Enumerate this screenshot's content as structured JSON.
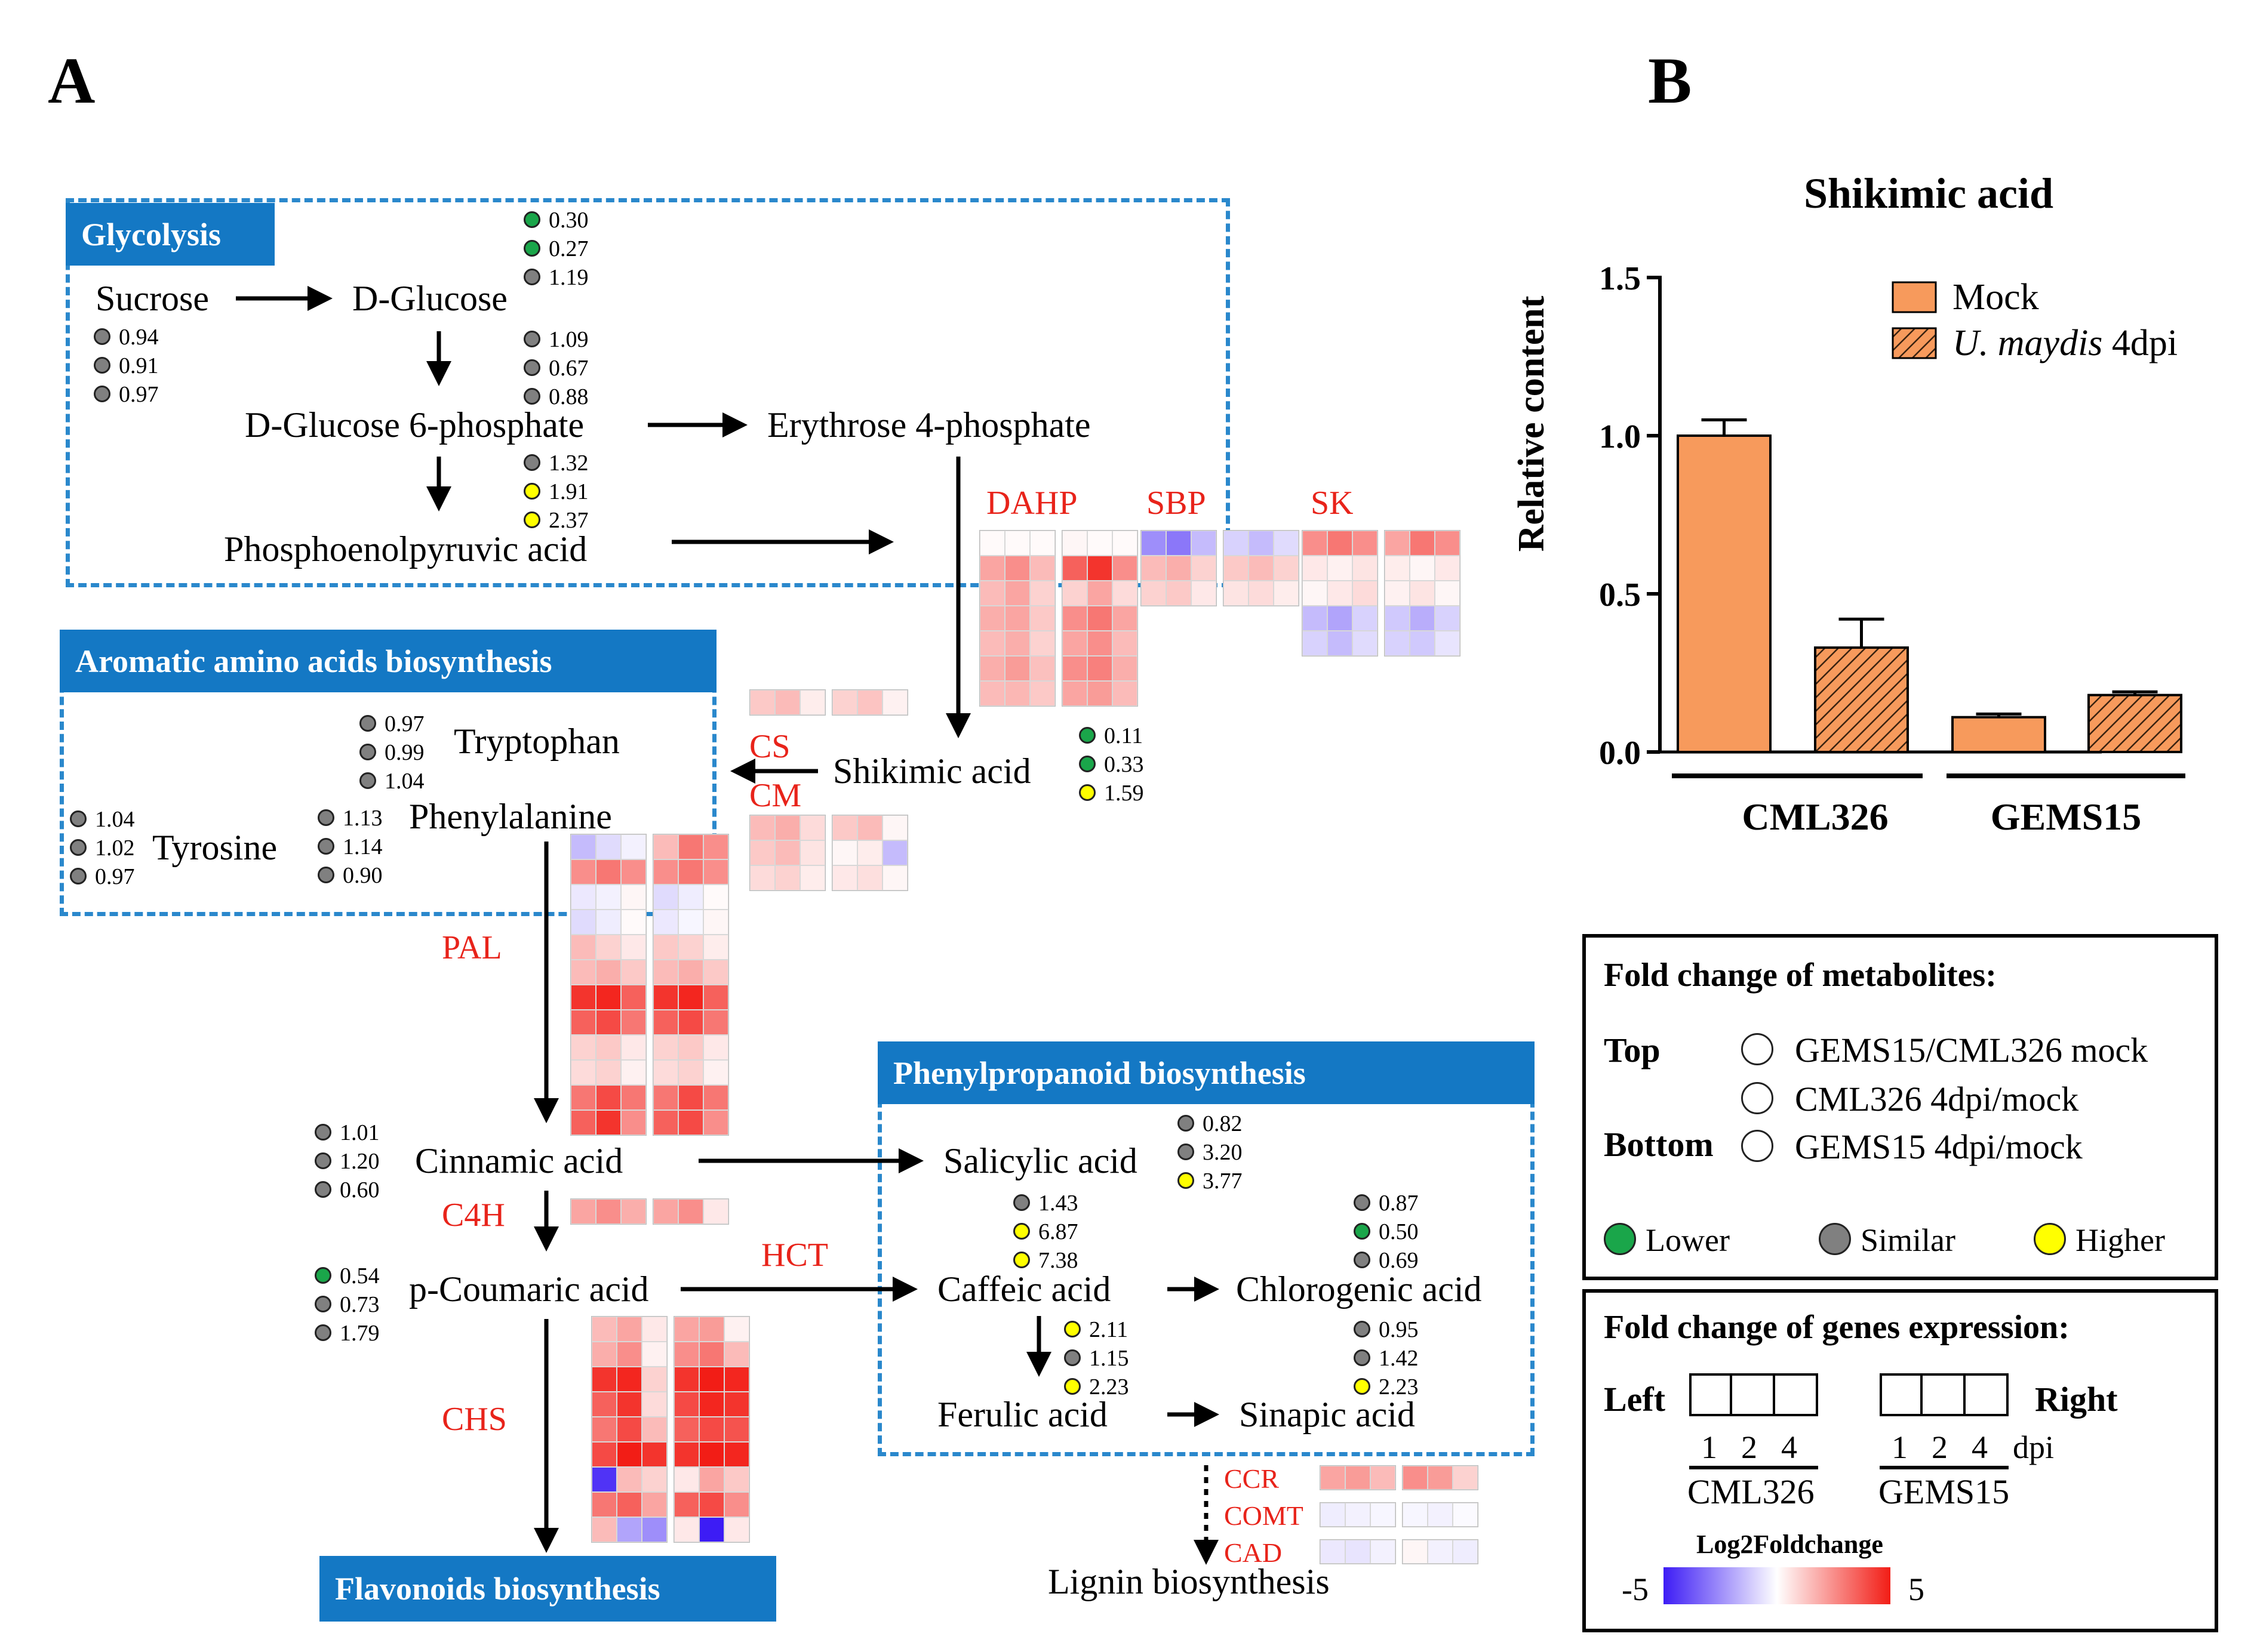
{
  "panels": {
    "a": "A",
    "b": "B"
  },
  "pathway": {
    "sections": {
      "glycolysis": "Glycolysis",
      "aromatic": "Aromatic amino acids biosynthesis",
      "phenylpropanoid": "Phenylpropanoid biosynthesis",
      "flavonoids": "Flavonoids biosynthesis"
    },
    "metabolites": {
      "sucrose": "Sucrose",
      "d_glucose": "D-Glucose",
      "g6p": "D-Glucose 6-phosphate",
      "e4p": "Erythrose 4-phosphate",
      "pep": "Phosphoenolpyruvic acid",
      "shikimic": "Shikimic acid",
      "tryptophan": "Tryptophan",
      "phenylalanine": "Phenylalanine",
      "tyrosine": "Tyrosine",
      "cinnamic": "Cinnamic acid",
      "p_coumaric": "p-Coumaric acid",
      "salicylic": "Salicylic acid",
      "caffeic": "Caffeic acid",
      "chlorogenic": "Chlorogenic acid",
      "ferulic": "Ferulic acid",
      "sinapic": "Sinapic acid",
      "lignin": "Lignin biosynthesis"
    },
    "enzymes": {
      "dahp": "DAHP",
      "sbp": "SBP",
      "sk": "SK",
      "cs": "CS",
      "cm": "CM",
      "pal": "PAL",
      "c4h": "C4H",
      "hct": "HCT",
      "chs": "CHS",
      "ccr": "CCR",
      "comt": "COMT",
      "cad": "CAD"
    },
    "fold_changes": {
      "d_glucose": [
        {
          "v": "0.30",
          "c": "lower"
        },
        {
          "v": "0.27",
          "c": "lower"
        },
        {
          "v": "1.19",
          "c": "similar"
        }
      ],
      "sucrose": [
        {
          "v": "0.94",
          "c": "similar"
        },
        {
          "v": "0.91",
          "c": "similar"
        },
        {
          "v": "0.97",
          "c": "similar"
        }
      ],
      "g6p": [
        {
          "v": "1.09",
          "c": "similar"
        },
        {
          "v": "0.67",
          "c": "similar"
        },
        {
          "v": "0.88",
          "c": "similar"
        }
      ],
      "pep": [
        {
          "v": "1.32",
          "c": "similar"
        },
        {
          "v": "1.91",
          "c": "higher"
        },
        {
          "v": "2.37",
          "c": "higher"
        }
      ],
      "shikimic": [
        {
          "v": "0.11",
          "c": "lower"
        },
        {
          "v": "0.33",
          "c": "lower"
        },
        {
          "v": "1.59",
          "c": "higher"
        }
      ],
      "tryptophan": [
        {
          "v": "0.97",
          "c": "similar"
        },
        {
          "v": "0.99",
          "c": "similar"
        },
        {
          "v": "1.04",
          "c": "similar"
        }
      ],
      "tyrosine": [
        {
          "v": "1.04",
          "c": "similar"
        },
        {
          "v": "1.02",
          "c": "similar"
        },
        {
          "v": "0.97",
          "c": "similar"
        }
      ],
      "phenylalanine": [
        {
          "v": "1.13",
          "c": "similar"
        },
        {
          "v": "1.14",
          "c": "similar"
        },
        {
          "v": "0.90",
          "c": "similar"
        }
      ],
      "cinnamic": [
        {
          "v": "1.01",
          "c": "similar"
        },
        {
          "v": "1.20",
          "c": "similar"
        },
        {
          "v": "0.60",
          "c": "similar"
        }
      ],
      "salicylic": [
        {
          "v": "0.82",
          "c": "similar"
        },
        {
          "v": "3.20",
          "c": "similar"
        },
        {
          "v": "3.77",
          "c": "higher"
        }
      ],
      "caffeic": [
        {
          "v": "1.43",
          "c": "similar"
        },
        {
          "v": "6.87",
          "c": "higher"
        },
        {
          "v": "7.38",
          "c": "higher"
        }
      ],
      "chlorogenic": [
        {
          "v": "0.87",
          "c": "similar"
        },
        {
          "v": "0.50",
          "c": "lower"
        },
        {
          "v": "0.69",
          "c": "similar"
        }
      ],
      "p_coumaric": [
        {
          "v": "0.54",
          "c": "lower"
        },
        {
          "v": "0.73",
          "c": "similar"
        },
        {
          "v": "1.79",
          "c": "similar"
        }
      ],
      "ferulic": [
        {
          "v": "2.11",
          "c": "higher"
        },
        {
          "v": "1.15",
          "c": "similar"
        },
        {
          "v": "2.23",
          "c": "higher"
        }
      ],
      "sinapic": [
        {
          "v": "0.95",
          "c": "similar"
        },
        {
          "v": "1.42",
          "c": "similar"
        },
        {
          "v": "2.23",
          "c": "higher"
        }
      ]
    },
    "heatmaps": {
      "dahp": [
        [
          0.1,
          0.1,
          0.1,
          0.2,
          0.1,
          0.1
        ],
        [
          2,
          2.5,
          1.5,
          3.5,
          4.5,
          2.5
        ],
        [
          1.5,
          2,
          1,
          1,
          2,
          0.8
        ],
        [
          1.8,
          2,
          1.2,
          2.5,
          3,
          2
        ],
        [
          1.5,
          1.8,
          1,
          2,
          2.5,
          1.5
        ],
        [
          1.8,
          2.2,
          1.4,
          2.5,
          2.8,
          1.8
        ],
        [
          1.5,
          1.6,
          1.2,
          2,
          2.2,
          1.5
        ]
      ],
      "sbp": [
        [
          -2.5,
          -3,
          -1.5,
          -1,
          -1.5,
          -0.8
        ],
        [
          1.5,
          1.8,
          1,
          1.2,
          1.5,
          1
        ],
        [
          1,
          1.2,
          0.5,
          0.6,
          0.8,
          0.4
        ]
      ],
      "sk": [
        [
          2.5,
          3,
          2.5,
          2,
          3,
          2.5
        ],
        [
          0.5,
          0.3,
          0.6,
          0.4,
          0.2,
          0.5
        ],
        [
          0.2,
          0.5,
          0.8,
          0.3,
          0.6,
          0.2
        ],
        [
          -1.5,
          -2,
          -1,
          -1.2,
          -1.8,
          -1
        ],
        [
          -1,
          -1.5,
          -0.8,
          -1,
          -1.2,
          -0.6
        ]
      ],
      "cs": [
        [
          1.2,
          1.5,
          0.4,
          1,
          1.3,
          0.3
        ]
      ],
      "cm": [
        [
          1.5,
          1.8,
          0.8,
          1.2,
          1.5,
          0.2
        ],
        [
          1.2,
          1.5,
          0.6,
          0.2,
          0.4,
          -1.5
        ],
        [
          0.8,
          1,
          0.4,
          0.5,
          0.7,
          0.2
        ]
      ],
      "pal": [
        [
          -1.5,
          -0.8,
          -0.3,
          1.5,
          3,
          2.5
        ],
        [
          2.5,
          3,
          2.5,
          2.5,
          3,
          2.5
        ],
        [
          -0.5,
          -0.3,
          0.2,
          -0.8,
          -0.4,
          0.1
        ],
        [
          -0.8,
          -0.4,
          0.1,
          -0.5,
          -0.2,
          0.2
        ],
        [
          1.5,
          1,
          0.5,
          1.2,
          1,
          0.4
        ],
        [
          1.5,
          1.8,
          1.2,
          1.5,
          1.8,
          1.2
        ],
        [
          4.5,
          4.8,
          3.5,
          4.5,
          4.8,
          3.5
        ],
        [
          3.5,
          4,
          3,
          3.5,
          4,
          3
        ],
        [
          1,
          1.2,
          0.5,
          1,
          1.2,
          0.5
        ],
        [
          0.8,
          1,
          0.3,
          0.8,
          1,
          0.3
        ],
        [
          3,
          4,
          3,
          3,
          4,
          3
        ],
        [
          3.5,
          4.5,
          2.5,
          3.5,
          4,
          2.5
        ]
      ],
      "c4h": [
        [
          2,
          2.5,
          1.8,
          2,
          2.5,
          0.5
        ]
      ],
      "chs": [
        [
          1.5,
          2,
          0.5,
          2,
          2.2,
          0.3
        ],
        [
          1.8,
          2.5,
          0.3,
          2.5,
          3,
          1.5
        ],
        [
          4.5,
          4.8,
          1,
          4.5,
          5,
          4.8
        ],
        [
          3.5,
          4.5,
          0.8,
          4,
          4.8,
          4.5
        ],
        [
          3,
          4,
          1.5,
          3.5,
          4,
          3.8
        ],
        [
          4,
          5,
          4.5,
          4.5,
          5,
          4.8
        ],
        [
          -4.5,
          1.5,
          1,
          0.5,
          2,
          1.2
        ],
        [
          3,
          3.5,
          2,
          3.5,
          4,
          2.5
        ],
        [
          1.5,
          -2,
          -2.5,
          0.5,
          -5,
          0.5
        ]
      ],
      "ccr": [
        [
          2,
          2.2,
          1.5,
          2.5,
          2.2,
          1
        ]
      ],
      "comt": [
        [
          -0.4,
          -0.3,
          -0.2,
          -0.2,
          -0.3,
          -0.1
        ]
      ],
      "cad": [
        [
          -0.5,
          -0.6,
          -0.3,
          0.2,
          -0.3,
          -0.4
        ]
      ]
    }
  },
  "chart_data": {
    "type": "bar",
    "title": "Shikimic acid",
    "ylabel": "Relative content",
    "xlabel": "",
    "ylim": [
      0.0,
      1.5
    ],
    "yticks": [
      "0.0",
      "0.5",
      "1.0",
      "1.5"
    ],
    "categories": [
      "CML326",
      "GEMS15"
    ],
    "series": [
      {
        "name": "Mock",
        "values": [
          1.0,
          0.11
        ],
        "errors": [
          0.05,
          0.01
        ],
        "color": "#f79a5c",
        "hatch": false
      },
      {
        "name": "U. maydis 4dpi",
        "name_italic": "U. maydis",
        "name_rest": " 4dpi",
        "values": [
          0.33,
          0.18
        ],
        "errors": [
          0.09,
          0.01
        ],
        "color": "#f79a5c",
        "hatch": true
      }
    ],
    "legend_position": "top-right"
  },
  "legend_metabolites": {
    "title": "Fold change of metabolites:",
    "top": "Top",
    "bottom": "Bottom",
    "rows": [
      "GEMS15/CML326 mock",
      "CML326 4dpi/mock",
      "GEMS15 4dpi/mock"
    ],
    "lower": "Lower",
    "similar": "Similar",
    "higher": "Higher",
    "colors": {
      "lower": "#1aa64a",
      "similar": "#808080",
      "higher": "#ffff00"
    }
  },
  "legend_genes": {
    "title": "Fold  change of genes expression:",
    "left": "Left",
    "right": "Right",
    "ticks": [
      "1",
      "2",
      "4"
    ],
    "dpi": "dpi",
    "cml": "CML326",
    "gems": "GEMS15",
    "scale_title": "Log2Foldchange",
    "scale_min": "-5",
    "scale_max": "5",
    "scale_colors": {
      "low": "#3d1cf5",
      "mid": "#ffffff",
      "high": "#f21d16"
    }
  }
}
